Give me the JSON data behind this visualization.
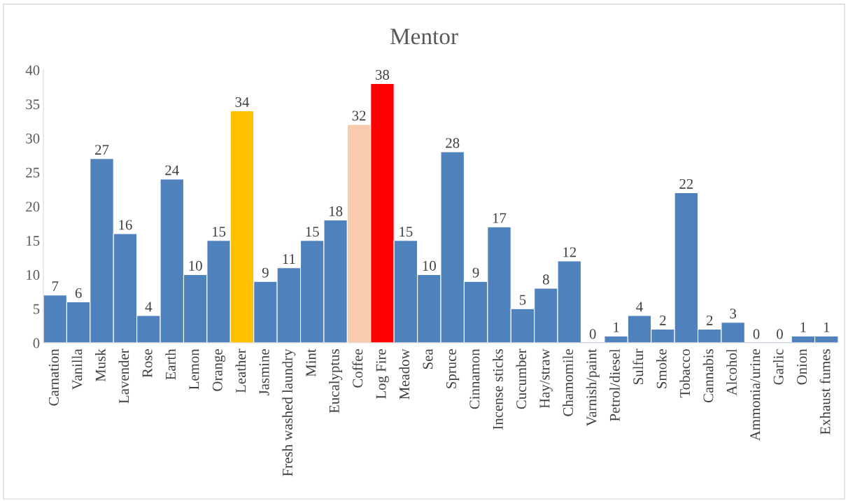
{
  "chart_data": {
    "type": "bar",
    "title": "Mentor",
    "categories": [
      "Carnation",
      "Vanilla",
      "Musk",
      "Lavender",
      "Rose",
      "Earth",
      "Lemon",
      "Orange",
      "Leather",
      "Jasmine",
      "Fresh washed laundry",
      "Mint",
      "Eucalyptus",
      "Coffee",
      "Log Fire",
      "Meadow",
      "Sea",
      "Spruce",
      "Cinnamon",
      "Incense sticks",
      "Cucumber",
      "Hay/straw",
      "Chamomile",
      "Varnish/paint",
      "Petrol/diesel",
      "Sulfur",
      "Smoke",
      "Tobacco",
      "Cannabis",
      "Alcohol",
      "Ammonia/urine",
      "Garlic",
      "Onion",
      "Exhaust fumes"
    ],
    "values": [
      7,
      6,
      27,
      16,
      4,
      24,
      10,
      15,
      34,
      9,
      11,
      15,
      18,
      32,
      38,
      15,
      10,
      28,
      9,
      17,
      5,
      8,
      12,
      0,
      1,
      4,
      2,
      22,
      2,
      3,
      0,
      0,
      1,
      1
    ],
    "colors": [
      "#4f81bd",
      "#4f81bd",
      "#4f81bd",
      "#4f81bd",
      "#4f81bd",
      "#4f81bd",
      "#4f81bd",
      "#4f81bd",
      "#ffc000",
      "#4f81bd",
      "#4f81bd",
      "#4f81bd",
      "#4f81bd",
      "#f8cbad",
      "#ff0000",
      "#4f81bd",
      "#4f81bd",
      "#4f81bd",
      "#4f81bd",
      "#4f81bd",
      "#4f81bd",
      "#4f81bd",
      "#4f81bd",
      "#4f81bd",
      "#4f81bd",
      "#4f81bd",
      "#4f81bd",
      "#4f81bd",
      "#4f81bd",
      "#4f81bd",
      "#4f81bd",
      "#4f81bd",
      "#4f81bd",
      "#4f81bd"
    ],
    "ylim": [
      0,
      40
    ],
    "yticks": [
      0,
      5,
      10,
      15,
      20,
      25,
      30,
      35,
      40
    ],
    "data_labels": true,
    "grid": false,
    "legend": false
  }
}
